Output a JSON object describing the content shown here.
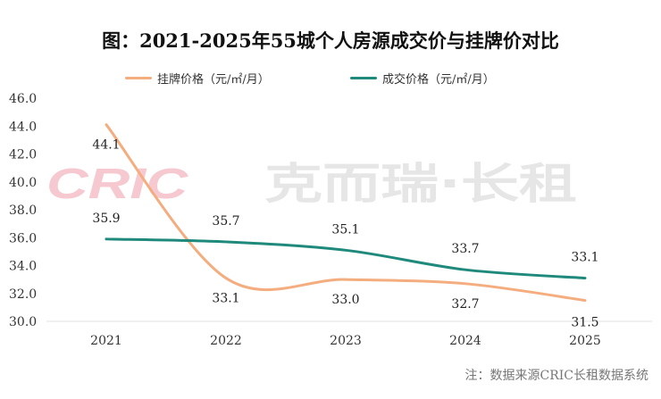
{
  "chart_data": {
    "type": "line",
    "title": "图：2021-2025年55城个人房源成交价与挂牌价对比",
    "categories": [
      "2021",
      "2022",
      "2023",
      "2024",
      "2025"
    ],
    "series": [
      {
        "name": "挂牌价格（元/㎡/月）",
        "color": "#f4ad7f",
        "values": [
          44.1,
          33.1,
          33.0,
          32.7,
          31.5
        ],
        "labels": [
          "44.1",
          "33.1",
          "33.0",
          "32.7",
          "31.5"
        ]
      },
      {
        "name": "成交价格（元/㎡/月）",
        "color": "#1f8a7b",
        "values": [
          35.9,
          35.7,
          35.1,
          33.7,
          33.1
        ],
        "labels": [
          "35.9",
          "35.7",
          "35.1",
          "33.7",
          "33.1"
        ]
      }
    ],
    "ylim": [
      30,
      46
    ],
    "yticks": [
      "30.0",
      "32.0",
      "34.0",
      "36.0",
      "38.0",
      "40.0",
      "42.0",
      "44.0",
      "46.0"
    ],
    "legend": "top-center",
    "grid": false
  },
  "watermark": {
    "brand": "CRIC",
    "text": "克而瑞·长租"
  },
  "note": "注：数据来源CRIC长租数据系统"
}
